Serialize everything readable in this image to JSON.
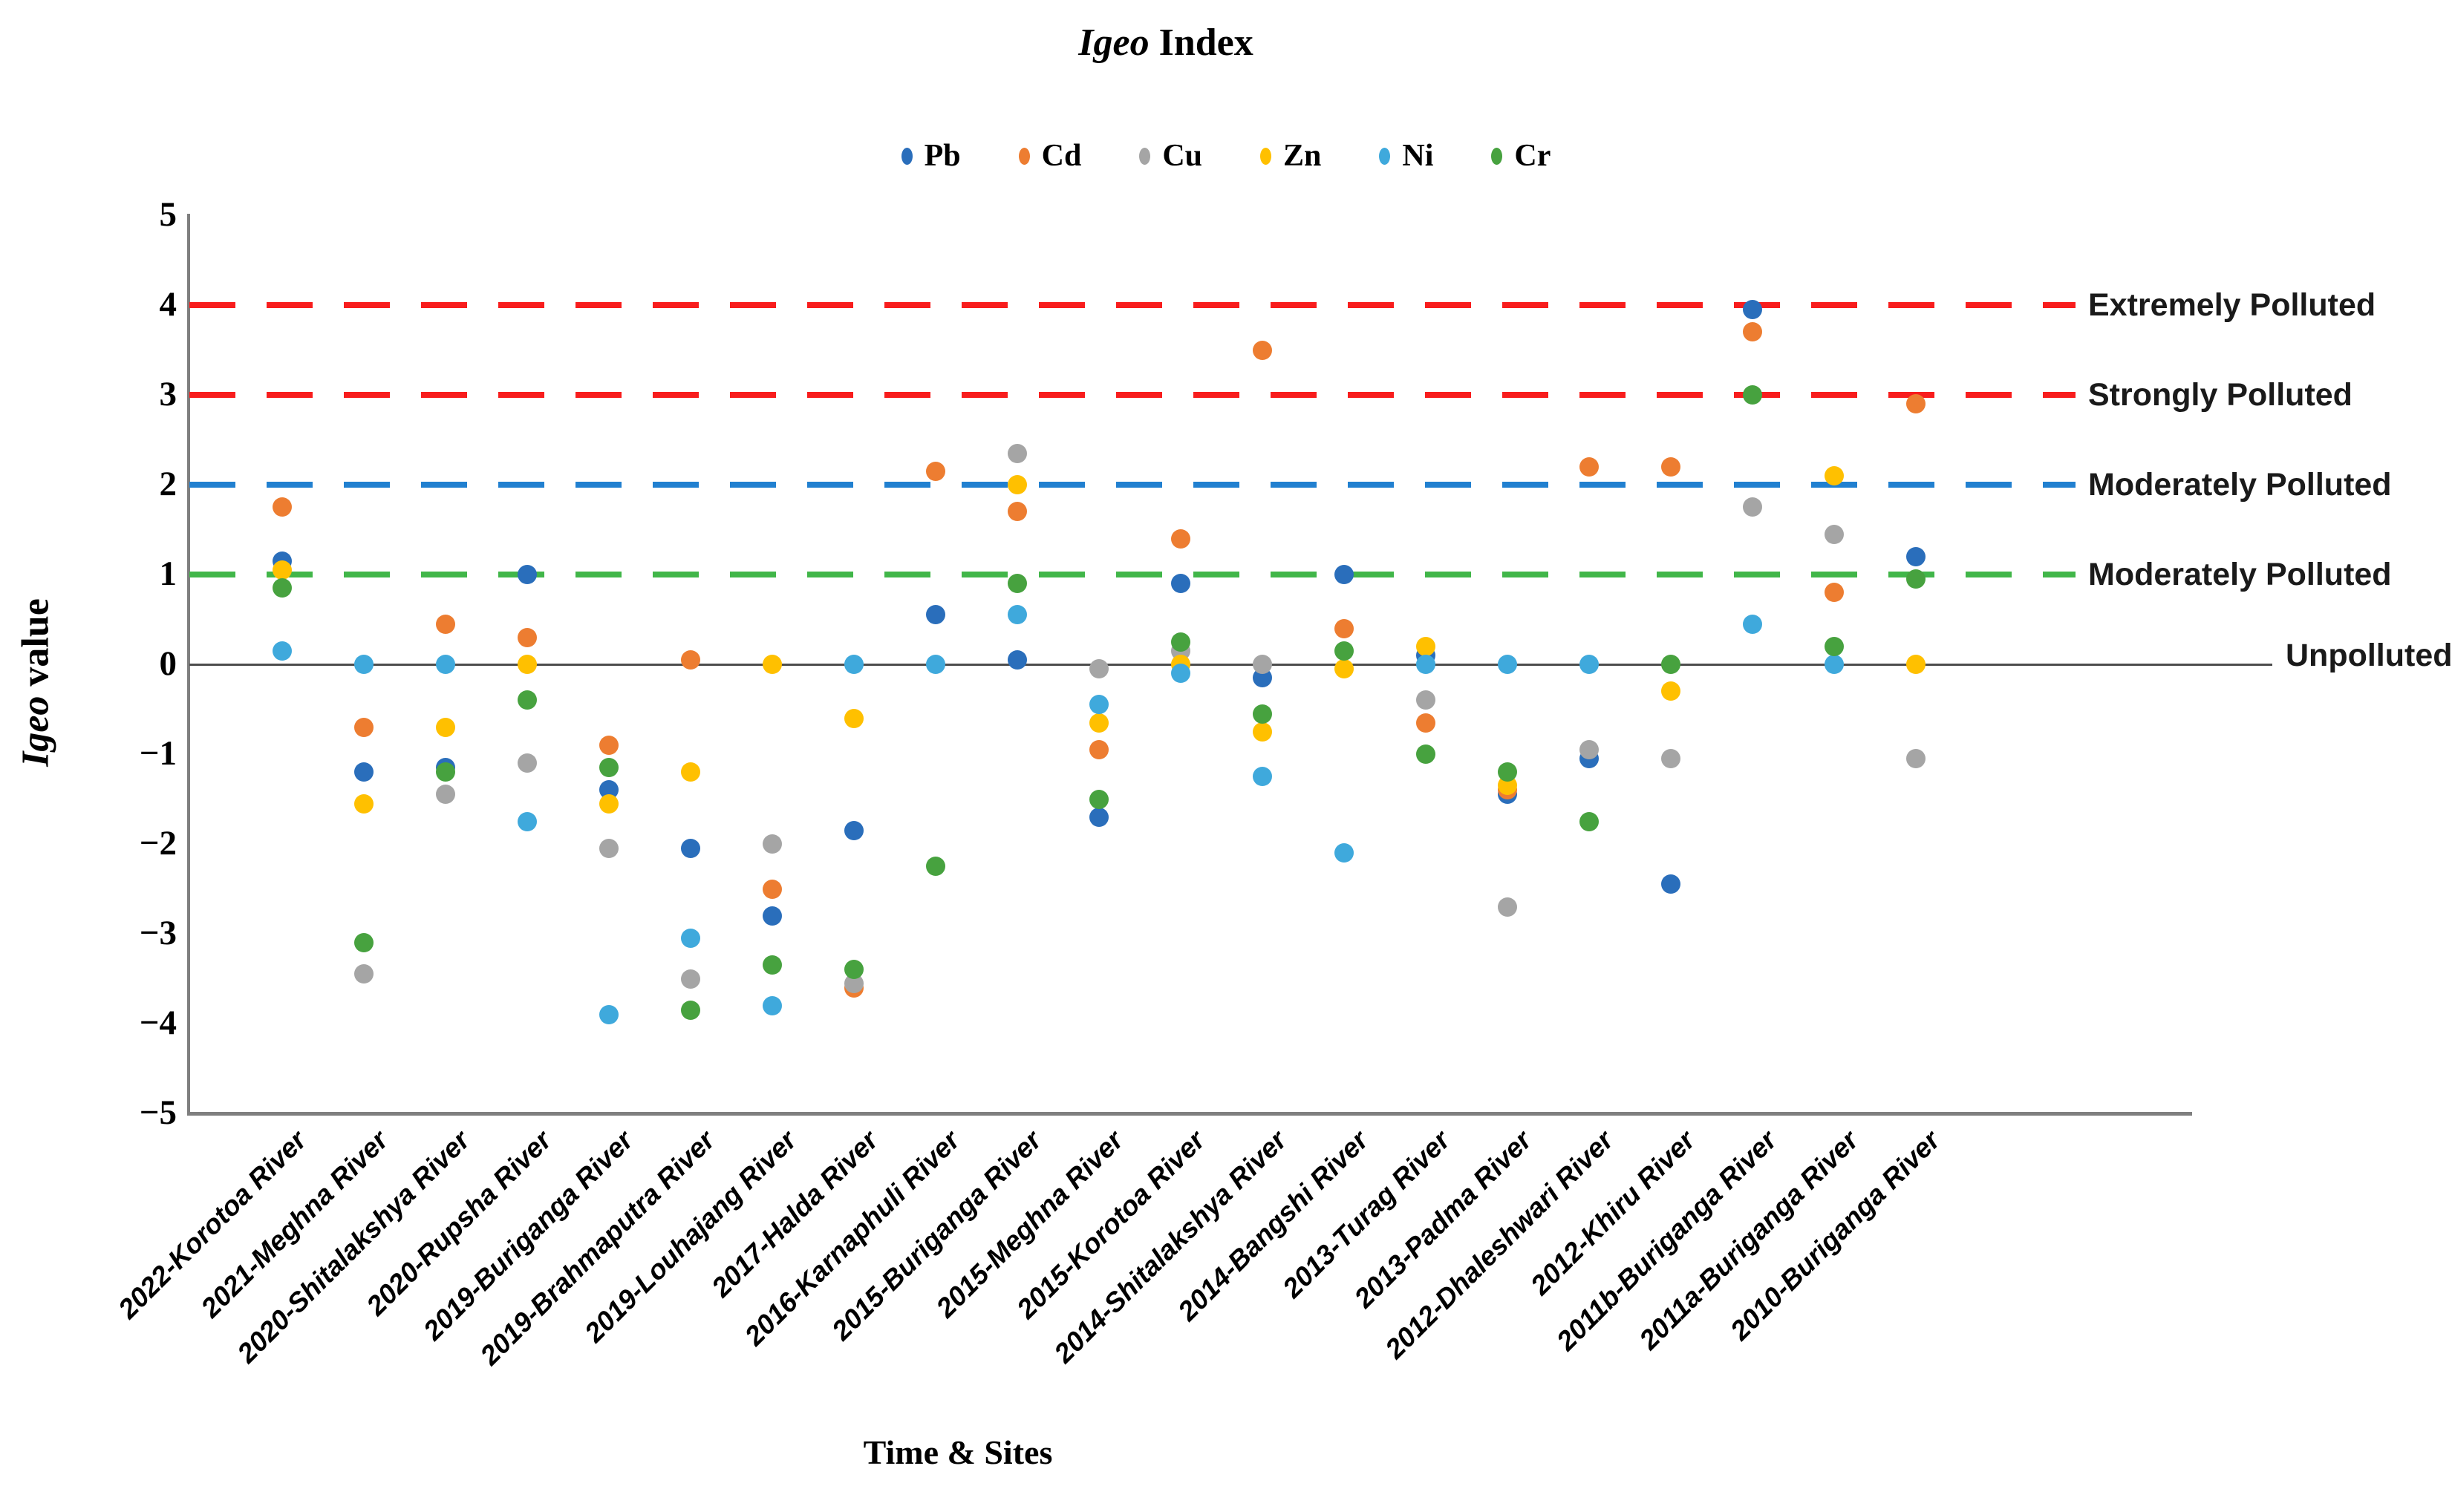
{
  "title": {
    "italic": "Igeo",
    "rest": " Index"
  },
  "axis": {
    "y_label_italic": "Igeo",
    "y_label_rest": " value",
    "x_label": "Time & Sites",
    "y_ticks": [
      5,
      4,
      3,
      2,
      1,
      0,
      -1,
      -2,
      -3,
      -4,
      -5
    ],
    "y_max": 5,
    "y_min": -5
  },
  "thresholds": [
    {
      "value": 4,
      "color": "#f81d1d",
      "style": "dashed",
      "label": "Extremely Polluted"
    },
    {
      "value": 3,
      "color": "#f81d1d",
      "style": "dashed",
      "label": "Strongly Polluted"
    },
    {
      "value": 2,
      "color": "#2180d0",
      "style": "dashed",
      "label": "Moderately Polluted"
    },
    {
      "value": 1,
      "color": "#41b649",
      "style": "dashed",
      "label": "Moderately Polluted"
    },
    {
      "value": 0,
      "color": "#4d4d4d",
      "style": "solid",
      "label": "Unpolluted"
    }
  ],
  "chart_data": {
    "type": "scatter",
    "title": "Igeo Index",
    "xlabel": "Time & Sites",
    "ylabel": "Igeo value",
    "ylim": [
      -5,
      5
    ],
    "grid": false,
    "legend_position": "top",
    "categories": [
      "2022-Korotoa River",
      "2021-Meghna River",
      "2020-Shitalakshya River",
      "2020-Rupsha River",
      "2019-Buriganga River",
      "2019-Brahmaputra River",
      "2019-Louhajang River",
      "2017-Halda River",
      "2016-Karnaphuli River",
      "2015-Buriganga River",
      "2015-Meghna River",
      "2015-Korotoa River",
      "2014-Shitalakshya River",
      "2014-Bangshi River",
      "2013-Turag River",
      "2013-Padma River",
      "2012-Dhaleshwari River",
      "2012-Khiru River",
      "2011b-Buriganga River",
      "2011a-Buriganga River",
      "2010-Buriganga River"
    ],
    "series": [
      {
        "name": "Pb",
        "color": "#2a6ebb",
        "values": [
          1.15,
          -1.2,
          -1.15,
          1.0,
          -1.4,
          -2.05,
          -2.8,
          -1.85,
          0.55,
          0.05,
          -1.7,
          0.9,
          -0.15,
          1.0,
          0.1,
          -1.45,
          -1.05,
          -2.45,
          3.95,
          null,
          1.2
        ]
      },
      {
        "name": "Cd",
        "color": "#ed7d31",
        "values": [
          1.75,
          -0.7,
          0.45,
          0.3,
          -0.9,
          0.05,
          -2.5,
          -3.6,
          2.15,
          1.7,
          -0.95,
          1.4,
          3.5,
          0.4,
          -0.65,
          -1.4,
          2.2,
          2.2,
          3.7,
          0.8,
          2.9
        ]
      },
      {
        "name": "Cu",
        "color": "#a5a5a5",
        "values": [
          null,
          -3.45,
          -1.45,
          -1.1,
          -2.05,
          -3.5,
          -2.0,
          -3.55,
          null,
          2.35,
          -0.05,
          0.15,
          0.0,
          null,
          -0.4,
          -2.7,
          -0.95,
          -1.05,
          1.75,
          1.45,
          -1.05
        ]
      },
      {
        "name": "Zn",
        "color": "#ffc000",
        "values": [
          1.05,
          -1.55,
          -0.7,
          0.0,
          -1.55,
          -1.2,
          0.0,
          -0.6,
          null,
          2.0,
          -0.65,
          0.0,
          -0.75,
          -0.05,
          0.2,
          -1.35,
          null,
          -0.3,
          null,
          2.1,
          0.0
        ]
      },
      {
        "name": "Ni",
        "color": "#3fa9dc",
        "values": [
          0.15,
          0.0,
          0.0,
          -1.75,
          -3.9,
          -3.05,
          -3.8,
          0.0,
          0.0,
          0.55,
          -0.45,
          -0.1,
          -1.25,
          -2.1,
          0.0,
          0.0,
          0.0,
          null,
          0.45,
          0.0,
          null
        ]
      },
      {
        "name": "Cr",
        "color": "#47a23f",
        "values": [
          0.85,
          -3.1,
          -1.2,
          -0.4,
          -1.15,
          -3.85,
          -3.35,
          -3.4,
          -2.25,
          0.9,
          -1.5,
          0.25,
          -0.55,
          0.15,
          -1.0,
          -1.2,
          -1.75,
          0.0,
          3.0,
          0.2,
          0.95
        ]
      }
    ]
  }
}
